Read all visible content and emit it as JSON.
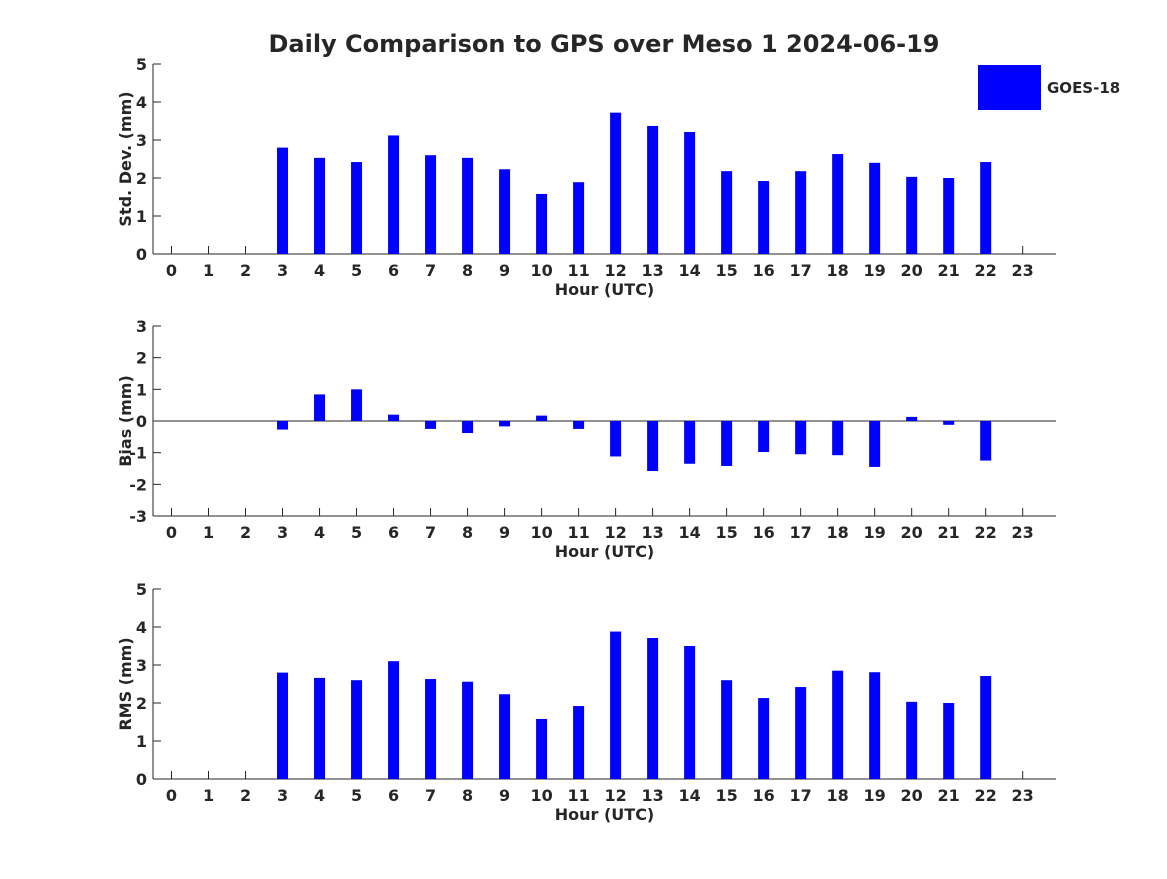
{
  "figure": {
    "title": "Daily Comparison to GPS over Meso 1 2024-06-19"
  },
  "legend": {
    "position": "top-right",
    "entries": [
      {
        "label": "GOES-18",
        "color": "#0000ff"
      }
    ]
  },
  "chart_data": [
    {
      "type": "bar",
      "ylabel": "Std. Dev. (mm)",
      "xlabel": "Hour (UTC)",
      "ylim": [
        0,
        5
      ],
      "yticks": [
        0,
        1,
        2,
        3,
        4,
        5
      ],
      "xlim": [
        -0.5,
        23.9
      ],
      "xticks": [
        0,
        1,
        2,
        3,
        4,
        5,
        6,
        7,
        8,
        9,
        10,
        11,
        12,
        13,
        14,
        15,
        16,
        17,
        18,
        19,
        20,
        21,
        22,
        23
      ],
      "grid": false,
      "series": [
        {
          "name": "GOES-18",
          "color": "#0000ff",
          "x": [
            3,
            4,
            5,
            6,
            7,
            8,
            9,
            10,
            11,
            12,
            13,
            14,
            15,
            16,
            17,
            18,
            19,
            20,
            21,
            22
          ],
          "values": [
            2.8,
            2.53,
            2.42,
            3.12,
            2.6,
            2.53,
            2.23,
            1.58,
            1.89,
            3.72,
            3.37,
            3.21,
            2.18,
            1.92,
            2.18,
            2.63,
            2.4,
            2.03,
            2.0,
            2.42
          ]
        }
      ]
    },
    {
      "type": "bar",
      "ylabel": "Bias (mm)",
      "xlabel": "Hour (UTC)",
      "ylim": [
        -3,
        3
      ],
      "yticks": [
        -3,
        -2,
        -1,
        0,
        1,
        2,
        3
      ],
      "xlim": [
        -0.5,
        23.9
      ],
      "xticks": [
        0,
        1,
        2,
        3,
        4,
        5,
        6,
        7,
        8,
        9,
        10,
        11,
        12,
        13,
        14,
        15,
        16,
        17,
        18,
        19,
        20,
        21,
        22,
        23
      ],
      "grid": false,
      "zero_line": true,
      "series": [
        {
          "name": "GOES-18",
          "color": "#0000ff",
          "x": [
            3,
            4,
            5,
            6,
            7,
            8,
            9,
            10,
            11,
            12,
            13,
            14,
            15,
            16,
            17,
            18,
            19,
            20,
            21,
            22
          ],
          "values": [
            -0.27,
            0.84,
            1.0,
            0.2,
            -0.25,
            -0.38,
            -0.17,
            0.17,
            -0.25,
            -1.12,
            -1.58,
            -1.35,
            -1.42,
            -0.98,
            -1.05,
            -1.08,
            -1.45,
            0.13,
            -0.12,
            -1.25
          ]
        }
      ]
    },
    {
      "type": "bar",
      "ylabel": "RMS (mm)",
      "xlabel": "Hour (UTC)",
      "ylim": [
        0,
        5
      ],
      "yticks": [
        0,
        1,
        2,
        3,
        4,
        5
      ],
      "xlim": [
        -0.5,
        23.9
      ],
      "xticks": [
        0,
        1,
        2,
        3,
        4,
        5,
        6,
        7,
        8,
        9,
        10,
        11,
        12,
        13,
        14,
        15,
        16,
        17,
        18,
        19,
        20,
        21,
        22,
        23
      ],
      "grid": false,
      "series": [
        {
          "name": "GOES-18",
          "color": "#0000ff",
          "x": [
            3,
            4,
            5,
            6,
            7,
            8,
            9,
            10,
            11,
            12,
            13,
            14,
            15,
            16,
            17,
            18,
            19,
            20,
            21,
            22
          ],
          "values": [
            2.8,
            2.66,
            2.6,
            3.1,
            2.63,
            2.56,
            2.23,
            1.58,
            1.92,
            3.88,
            3.71,
            3.5,
            2.6,
            2.13,
            2.42,
            2.85,
            2.81,
            2.03,
            2.0,
            2.71
          ]
        }
      ]
    }
  ]
}
